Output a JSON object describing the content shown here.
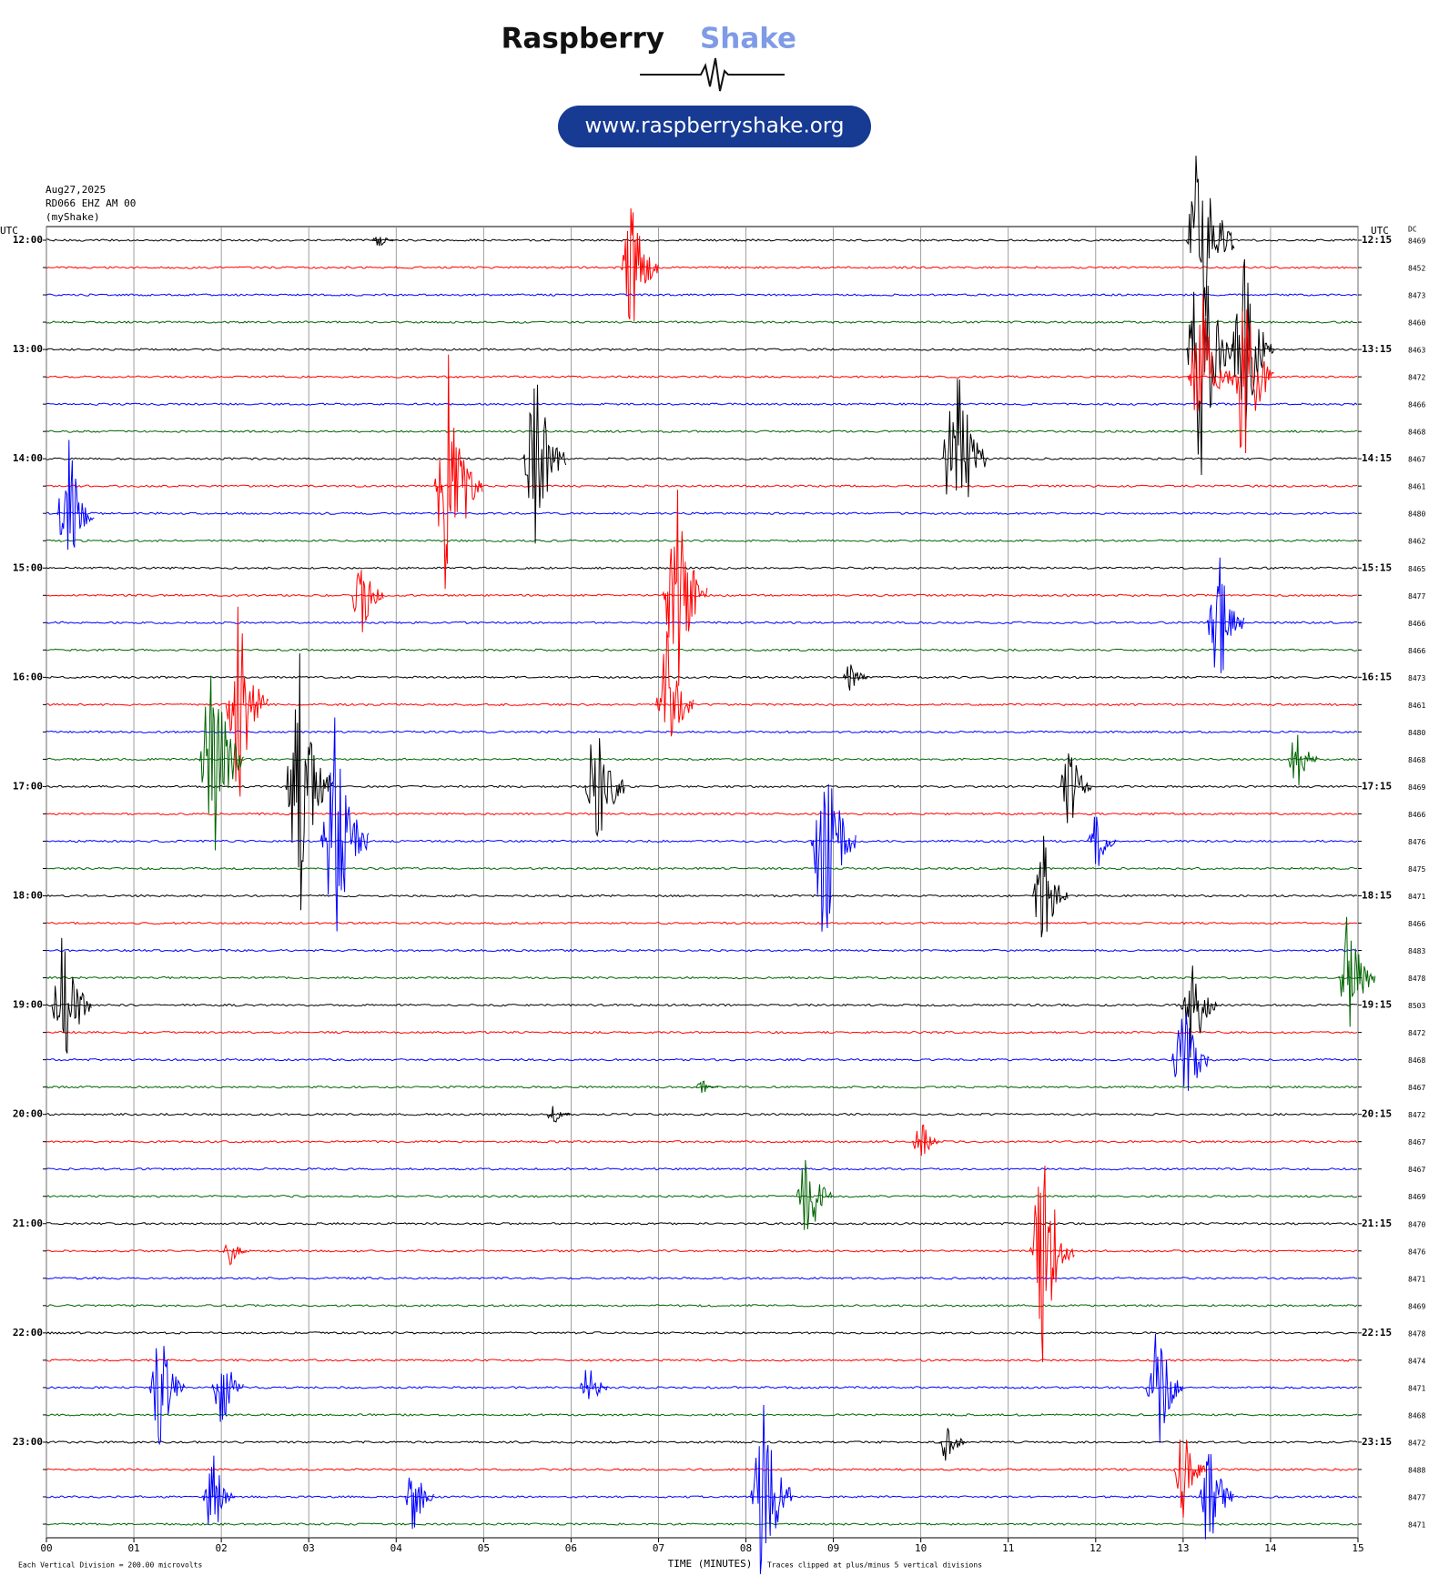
{
  "chart_data": {
    "type": "helicorder",
    "brand": [
      "Raspberry",
      "Shake"
    ],
    "url": "www.raspberryshake.org",
    "date": "Aug27,2025",
    "station": "RD066 EHZ AM 00",
    "source": "(myShake)",
    "left_axis_title": "UTC",
    "right_axis_title": "UTC",
    "dc_title": "DC",
    "left_labels": [
      "12:00",
      "13:00",
      "14:00",
      "15:00",
      "16:00",
      "17:00",
      "18:00",
      "19:00",
      "20:00",
      "21:00",
      "22:00",
      "23:00"
    ],
    "right_labels": [
      "12:15",
      "13:15",
      "14:15",
      "15:15",
      "16:15",
      "17:15",
      "18:15",
      "19:15",
      "20:15",
      "21:15",
      "22:15",
      "23:15"
    ],
    "dc": [
      8469,
      8452,
      8473,
      8460,
      8463,
      8472,
      8466,
      8468,
      8467,
      8461,
      8480,
      8462,
      8465,
      8477,
      8466,
      8466,
      8473,
      8461,
      8480,
      8468,
      8469,
      8466,
      8476,
      8475,
      8471,
      8466,
      8483,
      8478,
      8503,
      8472,
      8468,
      8467,
      8472,
      8467,
      8467,
      8469,
      8470,
      8476,
      8471,
      8469,
      8478,
      8474,
      8471,
      8468,
      8472,
      8488,
      8477,
      8471
    ],
    "colors": [
      "#000000",
      "#ff0000",
      "#0000ff",
      "#006400"
    ],
    "xlim": [
      0,
      15
    ],
    "xticks": [
      {
        "value": 0,
        "label": "00"
      },
      {
        "value": 1,
        "label": "01"
      },
      {
        "value": 2,
        "label": "02"
      },
      {
        "value": 3,
        "label": "03"
      },
      {
        "value": 4,
        "label": "04"
      },
      {
        "value": 5,
        "label": "05"
      },
      {
        "value": 6,
        "label": "06"
      },
      {
        "value": 7,
        "label": "07"
      },
      {
        "value": 8,
        "label": "08"
      },
      {
        "value": 9,
        "label": "09"
      },
      {
        "value": 10,
        "label": "10"
      },
      {
        "value": 11,
        "label": "11"
      },
      {
        "value": 12,
        "label": "12"
      },
      {
        "value": 13,
        "label": "13"
      },
      {
        "value": 14,
        "label": "14"
      },
      {
        "value": 15,
        "label": "15"
      }
    ],
    "x_label": "TIME (MINUTES)",
    "scale_note": "Each Vertical Division =  200.00 microvolts",
    "clip_note": "Traces clipped at plus/minus 5 vertical divisions",
    "events": [
      {
        "trace": 0,
        "minute": 3.8,
        "amplitude": 0.3
      },
      {
        "trace": 0,
        "minute": 13.2,
        "amplitude": 5
      },
      {
        "trace": 1,
        "minute": 6.7,
        "amplitude": 3
      },
      {
        "trace": 4,
        "minute": 13.2,
        "amplitude": 5
      },
      {
        "trace": 4,
        "minute": 13.7,
        "amplitude": 4
      },
      {
        "trace": 5,
        "minute": 13.2,
        "amplitude": 4
      },
      {
        "trace": 5,
        "minute": 13.7,
        "amplitude": 4
      },
      {
        "trace": 8,
        "minute": 5.6,
        "amplitude": 4
      },
      {
        "trace": 8,
        "minute": 10.4,
        "amplitude": 4.5
      },
      {
        "trace": 9,
        "minute": 4.6,
        "amplitude": 5
      },
      {
        "trace": 10,
        "minute": 0.25,
        "amplitude": 3
      },
      {
        "trace": 13,
        "minute": 3.6,
        "amplitude": 2
      },
      {
        "trace": 13,
        "minute": 7.2,
        "amplitude": 4.5
      },
      {
        "trace": 14,
        "minute": 13.4,
        "amplitude": 3
      },
      {
        "trace": 16,
        "minute": 9.2,
        "amplitude": 0.7
      },
      {
        "trace": 17,
        "minute": 2.2,
        "amplitude": 4
      },
      {
        "trace": 17,
        "minute": 7.1,
        "amplitude": 3
      },
      {
        "trace": 19,
        "minute": 1.9,
        "amplitude": 4.5
      },
      {
        "trace": 19,
        "minute": 14.3,
        "amplitude": 1.5
      },
      {
        "trace": 20,
        "minute": 2.9,
        "amplitude": 5
      },
      {
        "trace": 20,
        "minute": 6.3,
        "amplitude": 3.5
      },
      {
        "trace": 20,
        "minute": 11.7,
        "amplitude": 2
      },
      {
        "trace": 22,
        "minute": 3.3,
        "amplitude": 5
      },
      {
        "trace": 22,
        "minute": 8.9,
        "amplitude": 4.5
      },
      {
        "trace": 22,
        "minute": 12.0,
        "amplitude": 1.5
      },
      {
        "trace": 24,
        "minute": 11.4,
        "amplitude": 2.5
      },
      {
        "trace": 27,
        "minute": 14.9,
        "amplitude": 3
      },
      {
        "trace": 28,
        "minute": 0.2,
        "amplitude": 3.5
      },
      {
        "trace": 28,
        "minute": 13.1,
        "amplitude": 3
      },
      {
        "trace": 30,
        "minute": 13.0,
        "amplitude": 3
      },
      {
        "trace": 31,
        "minute": 7.5,
        "amplitude": 0.3
      },
      {
        "trace": 32,
        "minute": 5.8,
        "amplitude": 0.5
      },
      {
        "trace": 33,
        "minute": 10.0,
        "amplitude": 1
      },
      {
        "trace": 35,
        "minute": 8.7,
        "amplitude": 2.5
      },
      {
        "trace": 37,
        "minute": 11.4,
        "amplitude": 4.5
      },
      {
        "trace": 37,
        "minute": 2.1,
        "amplitude": 0.6
      },
      {
        "trace": 42,
        "minute": 1.3,
        "amplitude": 2.5
      },
      {
        "trace": 42,
        "minute": 2.0,
        "amplitude": 2
      },
      {
        "trace": 42,
        "minute": 6.2,
        "amplitude": 1.2
      },
      {
        "trace": 42,
        "minute": 12.7,
        "amplitude": 3
      },
      {
        "trace": 44,
        "minute": 10.3,
        "amplitude": 1
      },
      {
        "trace": 45,
        "minute": 13.0,
        "amplitude": 2
      },
      {
        "trace": 46,
        "minute": 1.9,
        "amplitude": 2
      },
      {
        "trace": 46,
        "minute": 4.2,
        "amplitude": 1.5
      },
      {
        "trace": 46,
        "minute": 8.2,
        "amplitude": 4
      },
      {
        "trace": 46,
        "minute": 13.3,
        "amplitude": 2.5
      }
    ]
  }
}
